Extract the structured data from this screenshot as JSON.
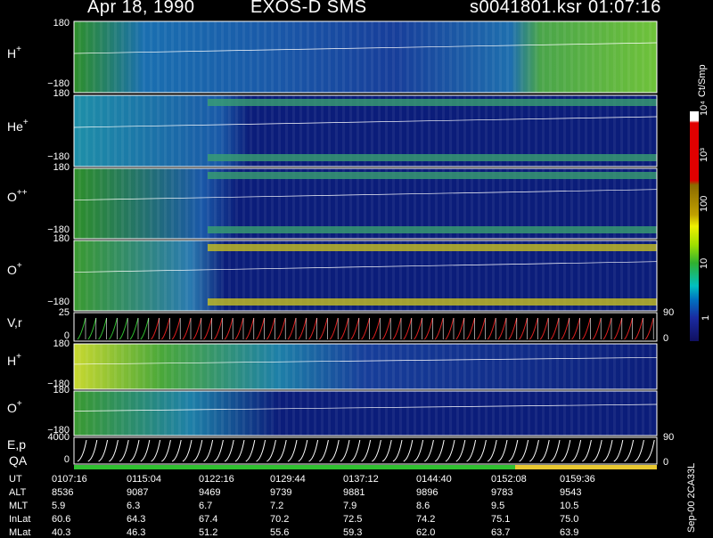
{
  "header": {
    "date_title": "Apr 18, 1990",
    "instrument": "EXOS-D SMS",
    "file_name": "s0041801.ksr",
    "time": "01:07:16"
  },
  "panels": [
    {
      "label": "H",
      "sup": "+",
      "ticks": [
        "180",
        "−180"
      ]
    },
    {
      "label": "He",
      "sup": "+",
      "ticks": [
        "180",
        "−180"
      ]
    },
    {
      "label": "O",
      "sup": "++",
      "ticks": [
        "180",
        "−180"
      ]
    },
    {
      "label": "O",
      "sup": "+",
      "ticks": [
        "180",
        "−180"
      ]
    },
    {
      "label": "V,r",
      "sup": "",
      "ticks": [
        "25",
        "0"
      ],
      "right_ticks": [
        "90",
        "0"
      ]
    },
    {
      "label": "H",
      "sup": "+",
      "ticks": [
        "180",
        "−180"
      ]
    },
    {
      "label": "O",
      "sup": "+",
      "ticks": [
        "180",
        "−180"
      ]
    },
    {
      "label": "E,p",
      "sup": "",
      "ticks": [
        "4000",
        "0"
      ],
      "right_ticks": [
        "90",
        "0"
      ]
    }
  ],
  "qa_label": "QA",
  "colorbar": {
    "unit": "Ct/Smp",
    "labels": [
      "10⁴",
      "10³",
      "100",
      "10",
      "1"
    ],
    "colors": [
      "#ffffff",
      "#e00000",
      "#a08000",
      "#e8e000",
      "#40c000",
      "#00a0a0",
      "#0030a0",
      "#000060"
    ]
  },
  "footer_table": {
    "rows": [
      {
        "label": "UT",
        "values": [
          "0107:16",
          "0115:04",
          "0122:16",
          "0129:44",
          "0137:12",
          "0144:40",
          "0152:08",
          "0159:36"
        ]
      },
      {
        "label": "ALT",
        "values": [
          "8536",
          "9087",
          "9469",
          "9739",
          "9881",
          "9896",
          "9783",
          "9543"
        ]
      },
      {
        "label": "MLT",
        "values": [
          "5.9",
          "6.3",
          "6.7",
          "7.2",
          "7.9",
          "8.6",
          "9.5",
          "10.5"
        ]
      },
      {
        "label": "InLat",
        "values": [
          "60.6",
          "64.3",
          "67.4",
          "70.2",
          "72.5",
          "74.2",
          "75.1",
          "75.0"
        ]
      },
      {
        "label": "MLat",
        "values": [
          "40.3",
          "46.3",
          "51.2",
          "55.6",
          "59.3",
          "62.0",
          "63.7",
          "63.9"
        ]
      }
    ]
  },
  "side_note": "Sep-00 2CA33L",
  "chart_data": {
    "type": "heatmap",
    "title": "Apr 18, 1990 EXOS-D SMS",
    "x": [
      "0107:16",
      "0115:04",
      "0122:16",
      "0129:44",
      "0137:12",
      "0144:40",
      "0152:08",
      "0159:36"
    ],
    "panels": [
      "H+",
      "He+",
      "O++",
      "O+",
      "V,r",
      "H+",
      "O+",
      "E,p"
    ],
    "ylim_pitch": [
      -180,
      180
    ],
    "ylim_vr": [
      0,
      25
    ],
    "ylim_ep": [
      0,
      4000
    ],
    "colorbar_range": [
      1,
      10000
    ],
    "colorbar_unit": "Ct/Smp",
    "colorbar_scale": "log"
  }
}
